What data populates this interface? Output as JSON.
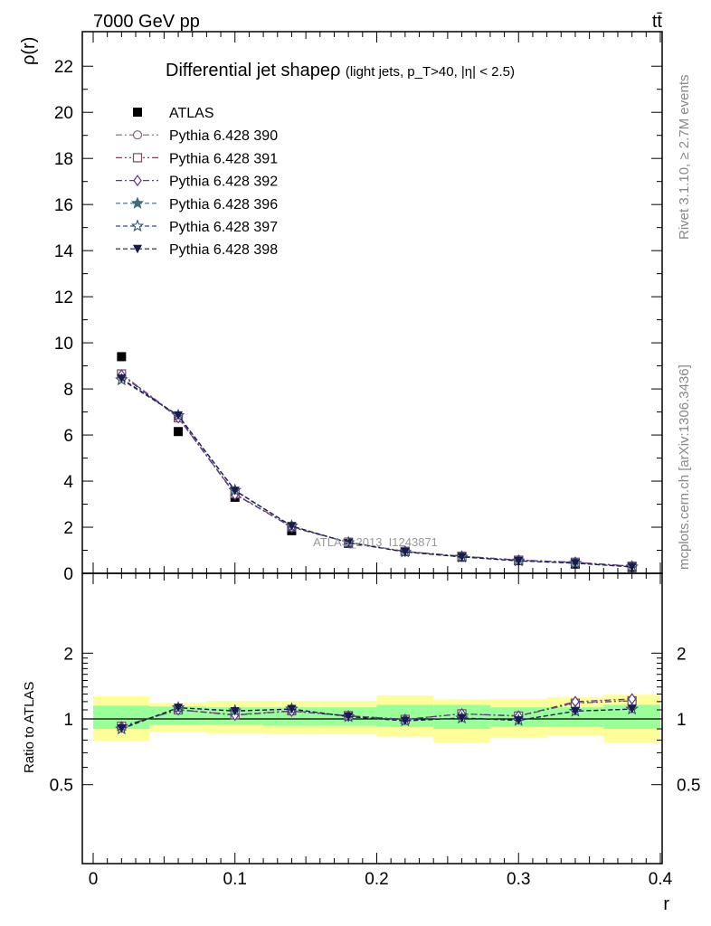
{
  "header": {
    "left": "7000 GeV pp",
    "right": "tt̄"
  },
  "side_labels": {
    "rivet": "Rivet 3.1.10, ≥ 2.7M events",
    "mcplots": "mcplots.cern.ch [arXiv:1306.3436]"
  },
  "chart_data": [
    {
      "type": "scatter",
      "panel": "main",
      "title": "Differential jet shape",
      "title_symbol": "ρ",
      "subtitle": "(light jets, p_T>40, |η| < 2.5)",
      "ylabel": "ρ(r)",
      "xlabel": "r",
      "xlim": [
        0,
        0.4
      ],
      "ylim": [
        0,
        23.5
      ],
      "yticks": [
        "0",
        "2",
        "4",
        "6",
        "8",
        "10",
        "12",
        "14",
        "16",
        "18",
        "20",
        "22"
      ],
      "watermark": "ATLAS_2013_I1243871",
      "legend_position": "top-left",
      "x": [
        0.02,
        0.06,
        0.1,
        0.14,
        0.18,
        0.22,
        0.26,
        0.3,
        0.34,
        0.38
      ],
      "series": [
        {
          "name": "ATLAS",
          "marker": "filled-square",
          "color": "#000000",
          "values": [
            9.4,
            6.15,
            3.3,
            1.85,
            1.3,
            0.95,
            0.7,
            0.55,
            0.4,
            0.25
          ]
        },
        {
          "name": "Pythia 6.428 390",
          "marker": "open-circle",
          "line": "dash-dot",
          "color": "#8a5a8a",
          "values": [
            8.65,
            6.8,
            3.45,
            2.0,
            1.35,
            0.95,
            0.74,
            0.58,
            0.48,
            0.31
          ]
        },
        {
          "name": "Pythia 6.428 391",
          "marker": "open-square",
          "line": "dash-dot-dot",
          "color": "#7a4a60",
          "values": [
            8.65,
            6.75,
            3.45,
            2.02,
            1.35,
            0.95,
            0.74,
            0.57,
            0.48,
            0.31
          ]
        },
        {
          "name": "Pythia 6.428 392",
          "marker": "open-diamond",
          "line": "dash-dot",
          "color": "#5a3a90",
          "values": [
            8.6,
            6.75,
            3.42,
            2.0,
            1.34,
            0.95,
            0.74,
            0.57,
            0.48,
            0.31
          ]
        },
        {
          "name": "Pythia 6.428 396",
          "marker": "filled-star",
          "line": "dashed",
          "color": "#3f6a80",
          "values": [
            8.4,
            6.85,
            3.6,
            2.05,
            1.33,
            0.93,
            0.71,
            0.54,
            0.44,
            0.28
          ]
        },
        {
          "name": "Pythia 6.428 397",
          "marker": "open-star",
          "line": "dashed",
          "color": "#2f5570",
          "values": [
            8.4,
            6.85,
            3.6,
            2.05,
            1.33,
            0.93,
            0.71,
            0.54,
            0.44,
            0.28
          ]
        },
        {
          "name": "Pythia 6.428 398",
          "marker": "filled-triangle-down",
          "line": "dashed",
          "color": "#1a1a50",
          "values": [
            8.45,
            6.85,
            3.58,
            2.05,
            1.33,
            0.93,
            0.71,
            0.54,
            0.44,
            0.28
          ]
        }
      ]
    },
    {
      "type": "scatter",
      "panel": "ratio",
      "ylabel": "Ratio to ATLAS",
      "xlabel": "r",
      "xlim": [
        0,
        0.4
      ],
      "ylim": [
        0.4,
        2.3
      ],
      "log_y": true,
      "yticks": [
        "0.5",
        "1",
        "2"
      ],
      "xticks": [
        "0",
        "0.1",
        "0.2",
        "0.3",
        "0.4"
      ],
      "x": [
        0.02,
        0.06,
        0.1,
        0.14,
        0.18,
        0.22,
        0.26,
        0.3,
        0.34,
        0.38
      ],
      "bin_edges": [
        0,
        0.04,
        0.08,
        0.12,
        0.16,
        0.2,
        0.24,
        0.28,
        0.32,
        0.36,
        0.4
      ],
      "band_inner": {
        "color": "#99ff99",
        "low": [
          0.9,
          0.94,
          0.94,
          0.93,
          0.93,
          0.92,
          0.9,
          0.92,
          0.92,
          0.9
        ],
        "high": [
          1.15,
          1.14,
          1.13,
          1.13,
          1.13,
          1.16,
          1.16,
          1.13,
          1.13,
          1.16
        ]
      },
      "band_outer": {
        "color": "#ffff99",
        "low": [
          0.79,
          0.87,
          0.86,
          0.85,
          0.85,
          0.83,
          0.78,
          0.82,
          0.84,
          0.78
        ],
        "high": [
          1.27,
          1.18,
          1.21,
          1.21,
          1.21,
          1.28,
          1.23,
          1.23,
          1.26,
          1.29
        ]
      },
      "series": [
        {
          "name": "Pythia 6.428 390",
          "values": [
            0.925,
            1.105,
            1.045,
            1.085,
            1.035,
            0.995,
            1.055,
            1.035,
            1.185,
            1.215
          ]
        },
        {
          "name": "Pythia 6.428 391",
          "values": [
            0.925,
            1.1,
            1.045,
            1.09,
            1.035,
            0.995,
            1.055,
            1.03,
            1.18,
            1.21
          ]
        },
        {
          "name": "Pythia 6.428 392",
          "values": [
            0.92,
            1.1,
            1.04,
            1.085,
            1.03,
            0.995,
            1.055,
            1.03,
            1.2,
            1.235
          ]
        },
        {
          "name": "Pythia 6.428 396",
          "values": [
            0.9,
            1.125,
            1.09,
            1.11,
            1.025,
            0.98,
            1.01,
            0.985,
            1.085,
            1.11
          ]
        },
        {
          "name": "Pythia 6.428 397",
          "values": [
            0.9,
            1.125,
            1.09,
            1.11,
            1.025,
            0.98,
            1.01,
            0.985,
            1.085,
            1.11
          ]
        },
        {
          "name": "Pythia 6.428 398",
          "values": [
            0.905,
            1.125,
            1.085,
            1.11,
            1.025,
            0.98,
            1.01,
            0.985,
            1.085,
            1.11
          ]
        }
      ]
    }
  ]
}
